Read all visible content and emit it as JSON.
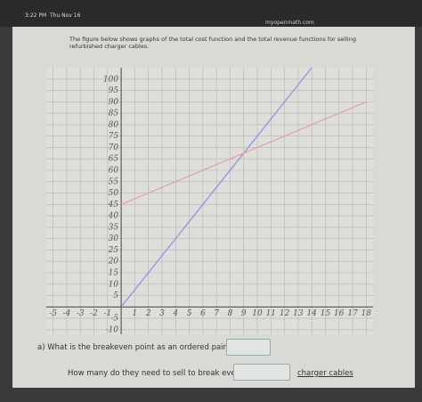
{
  "status": {
    "time": "3:22 PM",
    "day": "Thu Nov 16",
    "url": "myopenmath.com"
  },
  "prompt": "The figure below shows graphs of the total cost function and the total revenue functions for selling refurbished charger cables.",
  "chart_data": {
    "type": "line",
    "series": [
      {
        "color": "#9a90e0",
        "x": [
          0,
          14
        ],
        "values": [
          0,
          105
        ]
      },
      {
        "color": "#e6a3a3",
        "x": [
          0,
          18
        ],
        "values": [
          45,
          90
        ]
      }
    ],
    "xlim": [
      -5.5,
      18.5
    ],
    "ylim": [
      -12,
      105
    ],
    "xticks": [
      -5,
      -4,
      -3,
      -2,
      -1,
      1,
      2,
      3,
      4,
      5,
      6,
      7,
      8,
      9,
      10,
      11,
      12,
      13,
      14,
      15,
      16,
      17,
      18
    ],
    "yticks": [
      -10,
      -5,
      5,
      10,
      15,
      20,
      25,
      30,
      35,
      40,
      45,
      50,
      55,
      60,
      65,
      70,
      75,
      80,
      85,
      90,
      95,
      100
    ],
    "grid": true
  },
  "questions": [
    {
      "text": "a) What is the breakeven point as an ordered pair?"
    },
    {
      "text": "How many do they need to sell to break even?",
      "suffix": "charger cables"
    }
  ]
}
